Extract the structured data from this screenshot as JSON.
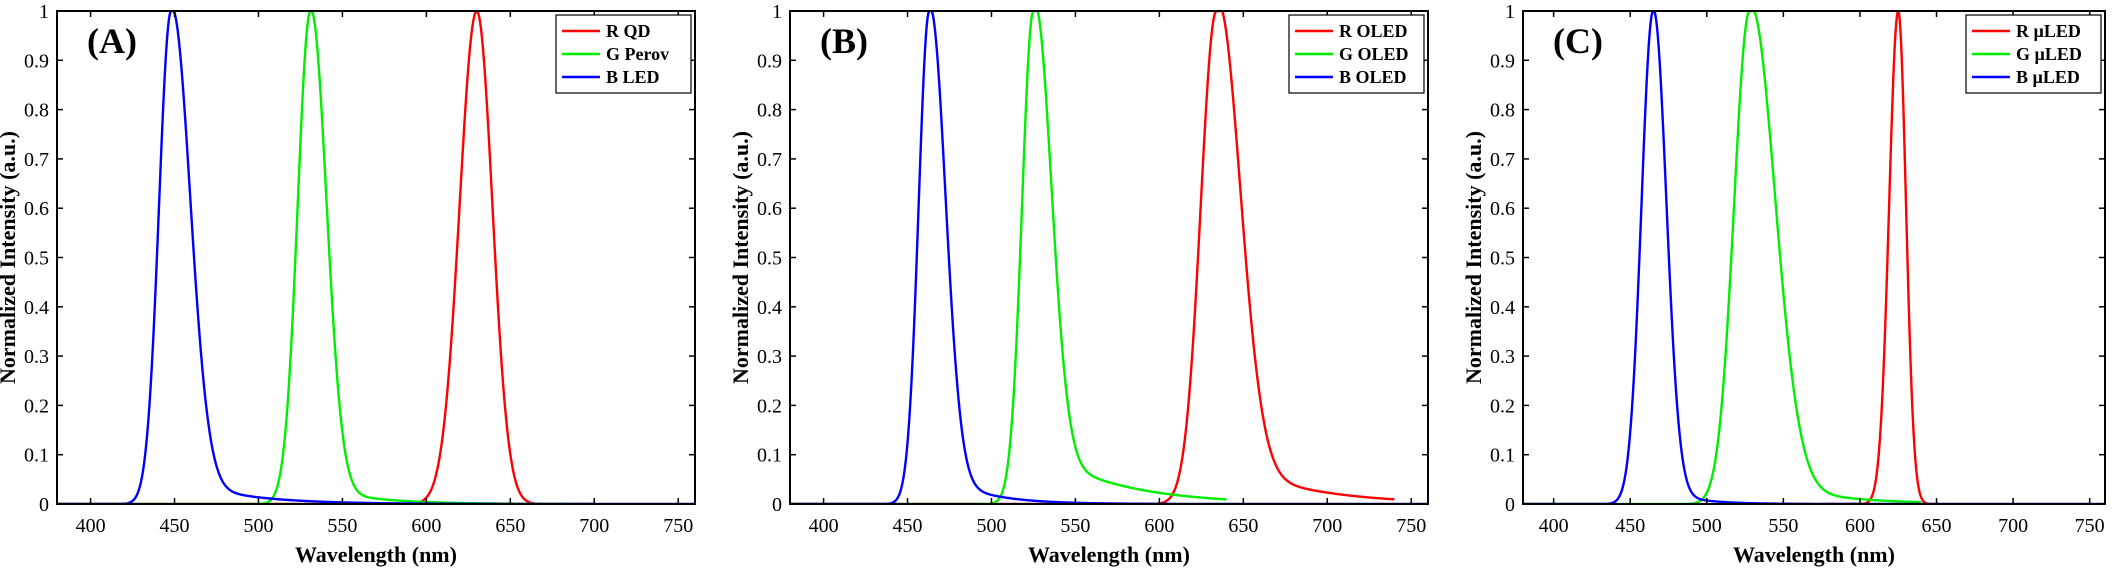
{
  "chart_data": [
    {
      "type": "line",
      "panel_label": "(A)",
      "xlabel": "Wavelength (nm)",
      "ylabel": "Normalized Intensity (a.u.)",
      "xlim": [
        380,
        760
      ],
      "ylim": [
        0,
        1
      ],
      "xticks": [
        400,
        450,
        500,
        550,
        600,
        650,
        700,
        750
      ],
      "yticks": [
        0,
        0.1,
        0.2,
        0.3,
        0.4,
        0.5,
        0.6,
        0.7,
        0.8,
        0.9,
        1
      ],
      "ytick_labels": [
        "0",
        "0.1",
        "0.2",
        "0.3",
        "0.4",
        "0.5",
        "0.6",
        "0.7",
        "0.8",
        "0.9",
        "1"
      ],
      "grid": false,
      "legend_position": "top-right",
      "series": [
        {
          "name": "R QD",
          "color": "#ff0000",
          "peak": 630,
          "fwhm_left": 24,
          "fwhm_right": 22,
          "x_min": 380,
          "x_max": 700,
          "tail_right": 0.0,
          "tail_width": 0
        },
        {
          "name": "G Perov",
          "color": "#00ee00",
          "peak": 531,
          "fwhm_left": 18,
          "fwhm_right": 22,
          "x_min": 380,
          "x_max": 700,
          "tail_right": 0.04,
          "tail_width": 30
        },
        {
          "name": "B LED",
          "color": "#0000ff",
          "peak": 448,
          "fwhm_left": 17,
          "fwhm_right": 26,
          "x_min": 380,
          "x_max": 760,
          "tail_right": 0.06,
          "tail_width": 35
        }
      ]
    },
    {
      "type": "line",
      "panel_label": "(B)",
      "xlabel": "Wavelength (nm)",
      "ylabel": "Normalized Intensity (a.u.)",
      "xlim": [
        380,
        760
      ],
      "ylim": [
        0,
        1
      ],
      "xticks": [
        400,
        450,
        500,
        550,
        600,
        650,
        700,
        750
      ],
      "yticks": [
        0,
        0.1,
        0.2,
        0.3,
        0.4,
        0.5,
        0.6,
        0.7,
        0.8,
        0.9,
        1
      ],
      "ytick_labels": [
        "0",
        "0.1",
        "0.2",
        "0.3",
        "0.4",
        "0.5",
        "0.6",
        "0.7",
        "0.8",
        "0.9",
        "1"
      ],
      "grid": false,
      "legend_position": "top-right",
      "series": [
        {
          "name": "R OLED",
          "color": "#ff0000",
          "peak": 634,
          "fwhm_left": 22,
          "fwhm_right": 32,
          "x_min": 380,
          "x_max": 740,
          "tail_right": 0.1,
          "tail_width": 45
        },
        {
          "name": "G OLED",
          "color": "#00ee00",
          "peak": 525,
          "fwhm_left": 16,
          "fwhm_right": 24,
          "x_min": 380,
          "x_max": 640,
          "tail_right": 0.12,
          "tail_width": 45
        },
        {
          "name": "B OLED",
          "color": "#0000ff",
          "peak": 463,
          "fwhm_left": 15,
          "fwhm_right": 22,
          "x_min": 380,
          "x_max": 760,
          "tail_right": 0.08,
          "tail_width": 25
        }
      ]
    },
    {
      "type": "line",
      "panel_label": "(C)",
      "xlabel": "Wavelength (nm)",
      "ylabel": "Normalized Intensity (a.u.)",
      "xlim": [
        380,
        760
      ],
      "ylim": [
        0,
        1
      ],
      "xticks": [
        400,
        450,
        500,
        550,
        600,
        650,
        700,
        750
      ],
      "yticks": [
        0,
        0.1,
        0.2,
        0.3,
        0.4,
        0.5,
        0.6,
        0.7,
        0.8,
        0.9,
        1
      ],
      "ytick_labels": [
        "0",
        "0.1",
        "0.2",
        "0.3",
        "0.4",
        "0.5",
        "0.6",
        "0.7",
        "0.8",
        "0.9",
        "1"
      ],
      "grid": false,
      "legend_position": "top-right",
      "series": [
        {
          "name": "R µLED",
          "color": "#ff0000",
          "peak": 625,
          "fwhm_left": 14,
          "fwhm_right": 12,
          "x_min": 575,
          "x_max": 652,
          "tail_right": 0.0,
          "tail_width": 0
        },
        {
          "name": "G µLED",
          "color": "#00ee00",
          "peak": 528,
          "fwhm_left": 24,
          "fwhm_right": 38,
          "x_min": 380,
          "x_max": 640,
          "tail_right": 0.06,
          "tail_width": 40
        },
        {
          "name": "B µLED",
          "color": "#0000ff",
          "peak": 465,
          "fwhm_left": 18,
          "fwhm_right": 20,
          "x_min": 380,
          "x_max": 760,
          "tail_right": 0.04,
          "tail_width": 20
        }
      ]
    }
  ]
}
